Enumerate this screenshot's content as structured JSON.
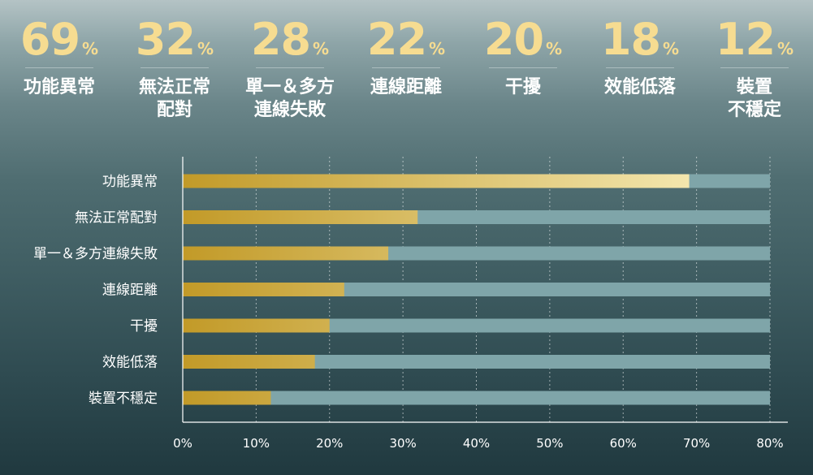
{
  "stats": [
    {
      "value": "69",
      "unit": "%",
      "label": "功能異常"
    },
    {
      "value": "32",
      "unit": "%",
      "label": "無法正常\n配對"
    },
    {
      "value": "28",
      "unit": "%",
      "label": "單一＆多方\n連線失敗"
    },
    {
      "value": "22",
      "unit": "%",
      "label": "連線距離"
    },
    {
      "value": "20",
      "unit": "%",
      "label": "干擾"
    },
    {
      "value": "18",
      "unit": "%",
      "label": "效能低落"
    },
    {
      "value": "12",
      "unit": "%",
      "label": "裝置\n不穩定"
    }
  ],
  "colors": {
    "bar_start": "#c29a28",
    "bar_end": "#f3e6ad",
    "track": "#7fa5a9",
    "stat_number": "#f6dc91"
  },
  "chart_data": {
    "type": "bar",
    "orientation": "horizontal",
    "categories": [
      "功能異常",
      "無法正常配對",
      "單一＆多方連線失敗",
      "連線距離",
      "干擾",
      "效能低落",
      "裝置不穩定"
    ],
    "values": [
      69,
      32,
      28,
      22,
      20,
      18,
      12
    ],
    "xlim": [
      0,
      80
    ],
    "xticks": [
      "0%",
      "10%",
      "20%",
      "30%",
      "40%",
      "50%",
      "60%",
      "70%",
      "80%"
    ],
    "grid": "vertical dotted",
    "title": "",
    "xlabel": "",
    "ylabel": ""
  }
}
